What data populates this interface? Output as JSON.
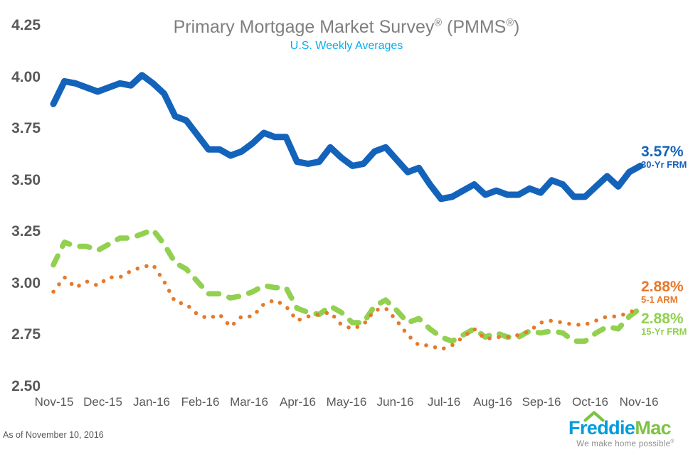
{
  "title": {
    "part1": "Primary Mortgage Market Survey",
    "reg1": "®",
    "part2": " (PMMS",
    "reg2": "®",
    "part3": ")"
  },
  "subtitle": "U.S. Weekly Averages",
  "footer": {
    "as_of": "As of November 10, 2016"
  },
  "logo": {
    "word1": "Freddie",
    "word2": "Mac",
    "tagline": "We make home possible",
    "tagline_reg": "®",
    "colors": {
      "blue": "#009CDE",
      "green": "#7DC242",
      "tagline_gray": "#8C8C8C"
    }
  },
  "chart_data": {
    "type": "line",
    "title": "Primary Mortgage Market Survey® (PMMS®)",
    "subtitle": "U.S. Weekly Averages",
    "frequency": "weekly",
    "grid": false,
    "legend_position": "line-end annotations (right)",
    "ylim": [
      2.5,
      4.25
    ],
    "y_tick_labels": [
      "4.25",
      "4.00",
      "3.75",
      "3.50",
      "3.25",
      "3.00",
      "2.75",
      "2.50"
    ],
    "x_tick_labels": [
      "Nov-15",
      "Dec-15",
      "Jan-16",
      "Feb-16",
      "Mar-16",
      "Apr-16",
      "May-16",
      "Jun-16",
      "Jul-16",
      "Aug-16",
      "Sep-16",
      "Oct-16",
      "Nov-16"
    ],
    "series": [
      {
        "name": "30-Yr FRM",
        "style": "solid",
        "color": "#1463BB",
        "end_label": {
          "value": "3.57%",
          "name": "30-Yr FRM"
        },
        "values": [
          3.87,
          3.98,
          3.97,
          3.95,
          3.93,
          3.95,
          3.97,
          3.96,
          4.01,
          3.97,
          3.92,
          3.81,
          3.79,
          3.72,
          3.65,
          3.65,
          3.62,
          3.64,
          3.68,
          3.73,
          3.71,
          3.71,
          3.59,
          3.58,
          3.59,
          3.66,
          3.61,
          3.57,
          3.58,
          3.64,
          3.66,
          3.6,
          3.54,
          3.56,
          3.48,
          3.41,
          3.42,
          3.45,
          3.48,
          3.43,
          3.45,
          3.43,
          3.43,
          3.46,
          3.44,
          3.5,
          3.48,
          3.42,
          3.42,
          3.47,
          3.52,
          3.47,
          3.54,
          3.57
        ]
      },
      {
        "name": "5-1 ARM",
        "style": "dotted",
        "color": "#E6792A",
        "end_label": {
          "value": "2.88%",
          "name": "5-1 ARM"
        },
        "values": [
          2.96,
          3.03,
          2.98,
          3.01,
          2.99,
          3.03,
          3.03,
          3.06,
          3.08,
          3.09,
          3.01,
          2.91,
          2.9,
          2.85,
          2.83,
          2.85,
          2.79,
          2.84,
          2.84,
          2.9,
          2.92,
          2.89,
          2.82,
          2.84,
          2.85,
          2.86,
          2.8,
          2.78,
          2.8,
          2.87,
          2.88,
          2.82,
          2.75,
          2.7,
          2.7,
          2.68,
          2.7,
          2.74,
          2.78,
          2.73,
          2.74,
          2.74,
          2.75,
          2.77,
          2.81,
          2.82,
          2.81,
          2.8,
          2.8,
          2.82,
          2.84,
          2.84,
          2.86,
          2.88
        ]
      },
      {
        "name": "15-Yr FRM",
        "style": "dashed",
        "color": "#92D050",
        "end_label": {
          "value": "2.88%",
          "name": "15-Yr FRM"
        },
        "values": [
          3.09,
          3.2,
          3.18,
          3.18,
          3.16,
          3.19,
          3.22,
          3.22,
          3.24,
          3.26,
          3.19,
          3.1,
          3.07,
          3.01,
          2.95,
          2.95,
          2.93,
          2.94,
          2.96,
          2.99,
          2.98,
          2.98,
          2.88,
          2.86,
          2.85,
          2.89,
          2.86,
          2.81,
          2.81,
          2.89,
          2.92,
          2.87,
          2.81,
          2.83,
          2.78,
          2.74,
          2.72,
          2.75,
          2.78,
          2.74,
          2.76,
          2.74,
          2.74,
          2.77,
          2.76,
          2.77,
          2.76,
          2.72,
          2.72,
          2.76,
          2.79,
          2.78,
          2.84,
          2.88
        ]
      }
    ]
  }
}
